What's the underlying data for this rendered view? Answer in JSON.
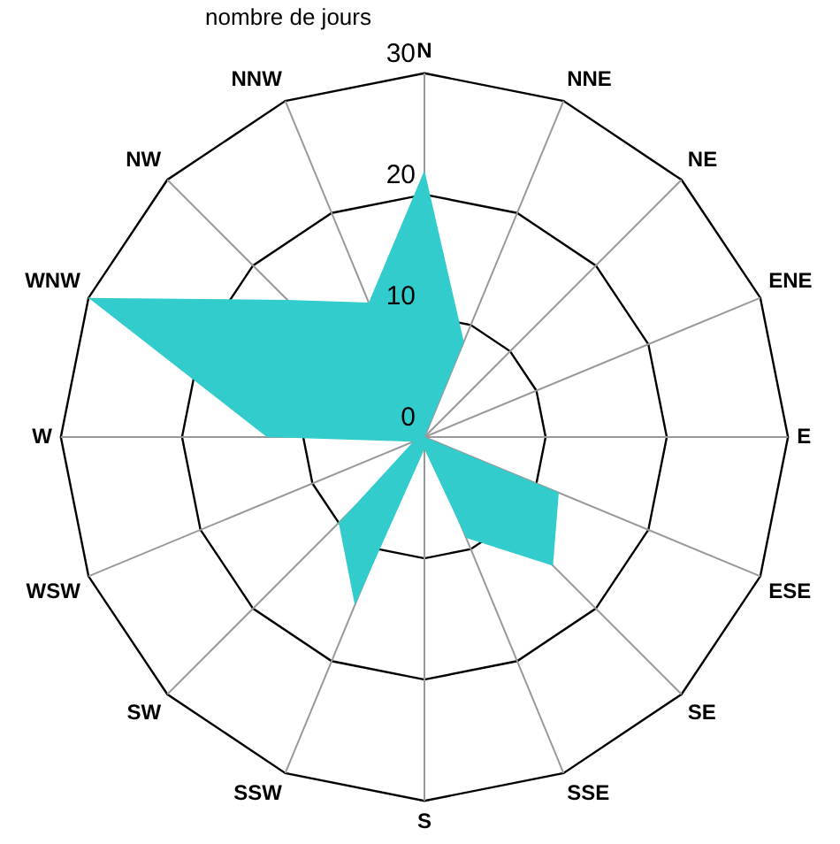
{
  "chart_data": {
    "type": "radar",
    "ylabel": "nombre de jours",
    "categories": [
      "N",
      "NNE",
      "NE",
      "ENE",
      "E",
      "ESE",
      "SE",
      "SSE",
      "S",
      "SSW",
      "SW",
      "WSW",
      "W",
      "WNW",
      "NW",
      "NNW"
    ],
    "series": [
      {
        "color": "#33cccc",
        "values": [
          22,
          8.5,
          0,
          0,
          0,
          12,
          15,
          9,
          1,
          15,
          10,
          1,
          13,
          30,
          16,
          12
        ]
      }
    ],
    "ylim": [
      0,
      30
    ],
    "yticks": [
      0,
      10,
      20,
      30
    ],
    "grid": true,
    "legend": false
  }
}
